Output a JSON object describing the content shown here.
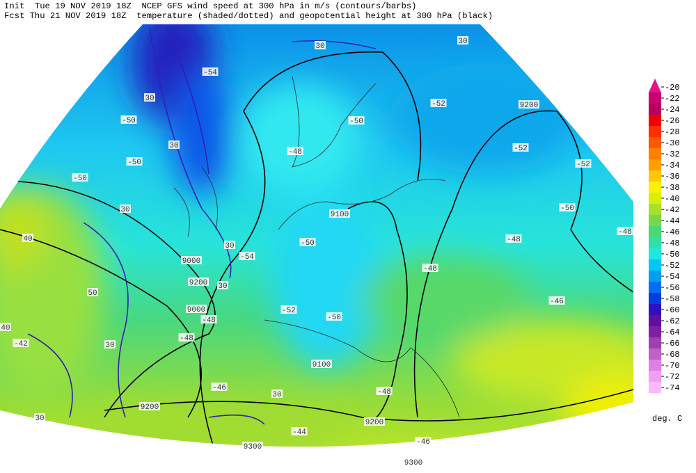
{
  "header": {
    "init_line": "Init  Tue 19 NOV 2019 18Z  NCEP GFS wind speed at 300 hPa in m/s (contours/barbs)",
    "fcst_line": "Fcst Thu 21 NOV 2019 18Z  temperature (shaded/dotted) and geopotential height at 300 hPa (black)"
  },
  "map": {
    "labels": [
      "9200",
      "9100",
      "9100",
      "9200",
      "9000",
      "9200",
      "9200",
      "9300",
      "9300",
      "9000",
      "30",
      "30",
      "30",
      "30",
      "30",
      "30",
      "30",
      "30",
      "30",
      "30",
      "40",
      "40",
      "50",
      "-50",
      "-50",
      "-50",
      "-52",
      "-52",
      "-52",
      "-50",
      "-48",
      "-48",
      "-50",
      "-52",
      "-50",
      "-48",
      "-48",
      "-46",
      "-48",
      "-46",
      "-54",
      "-54",
      "-48",
      "-50",
      "-46",
      "-48",
      "-44",
      "-42"
    ]
  },
  "colorbar": {
    "labels": [
      -20,
      -22,
      -24,
      -26,
      -28,
      -30,
      -32,
      -34,
      -36,
      -38,
      -40,
      -42,
      -44,
      -46,
      -48,
      -50,
      -52,
      -54,
      -56,
      -58,
      -60,
      -62,
      -64,
      -66,
      -68,
      -70,
      -72,
      -74
    ],
    "colors": [
      "#e8108c",
      "#c80070",
      "#b8005a",
      "#f00000",
      "#ff3000",
      "#ff5800",
      "#ff8000",
      "#ffa000",
      "#ffc800",
      "#fff000",
      "#d8f000",
      "#a8e030",
      "#78d848",
      "#48d878",
      "#30e0a8",
      "#20e8e0",
      "#00c8f4",
      "#00a0f0",
      "#0070f0",
      "#0040e0",
      "#3010c0",
      "#6010a0",
      "#8020a0",
      "#a040b0",
      "#c060c8",
      "#e080e0",
      "#f0a0f0",
      "#ffb8ff"
    ],
    "unit": "deg. C"
  }
}
